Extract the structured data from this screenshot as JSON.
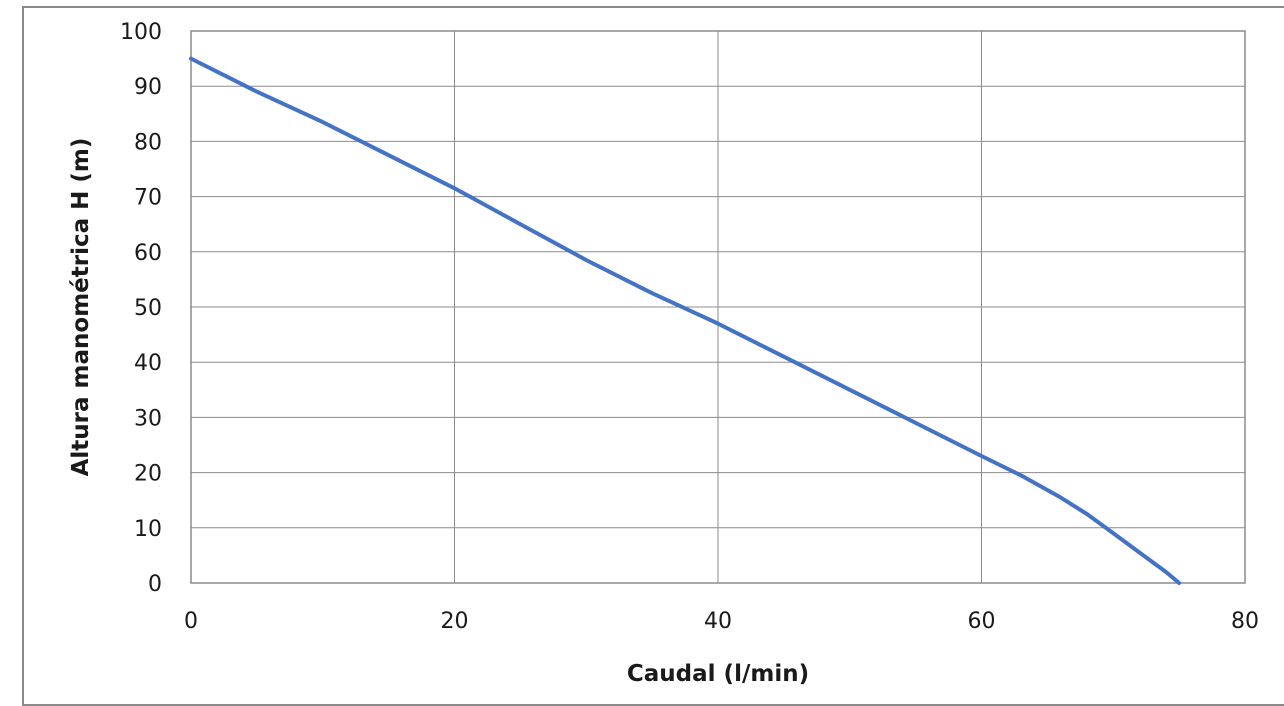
{
  "chart_data": {
    "type": "line",
    "title": "",
    "xlabel": "Caudal (l/min)",
    "ylabel": "Altura manométrica H (m)",
    "xlim": [
      0,
      80
    ],
    "ylim": [
      0,
      100
    ],
    "x_ticks": [
      "0",
      "20",
      "40",
      "60",
      "80"
    ],
    "y_ticks": [
      "0",
      "10",
      "20",
      "30",
      "40",
      "50",
      "60",
      "70",
      "80",
      "90",
      "100"
    ],
    "grid": true,
    "legend": "none",
    "line_color": "#4472C4",
    "series": [
      {
        "x": [
          0,
          5,
          10,
          15,
          20,
          25,
          30,
          35,
          40,
          45,
          50,
          55,
          60,
          63,
          66,
          68,
          70,
          72,
          74,
          75
        ],
        "y": [
          95,
          89,
          83.5,
          77.5,
          71.5,
          65,
          58.5,
          52.5,
          47,
          41,
          35,
          29,
          23,
          19.5,
          15.5,
          12.5,
          9,
          5.5,
          2,
          0
        ]
      }
    ]
  }
}
